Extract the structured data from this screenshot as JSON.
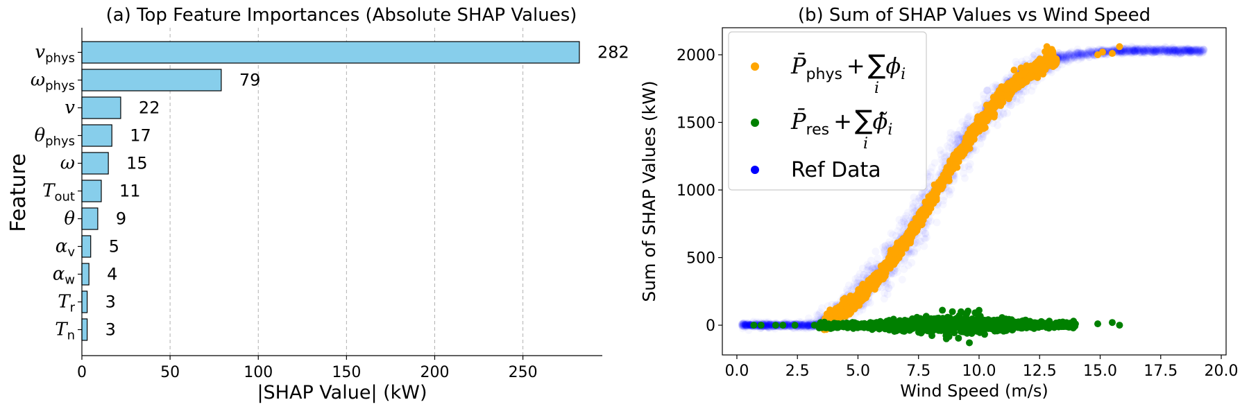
{
  "colors": {
    "bar_fill": "#87ceeb",
    "bar_edge": "#000000",
    "phys": "#ffa500",
    "res": "#008000",
    "ref": "#0000ff",
    "grid": "#b0b0b0"
  },
  "chart_data": [
    {
      "type": "bar",
      "orientation": "horizontal",
      "title": "(a) Top Feature Importances (Absolute SHAP Values)",
      "xlabel": "|SHAP Value| (kW)",
      "ylabel": "Feature",
      "xlim": [
        0,
        295
      ],
      "xticks": [
        0,
        50,
        100,
        150,
        200,
        250
      ],
      "xtick_labels": [
        "0",
        "50",
        "100",
        "150",
        "200",
        "250"
      ],
      "grid": "x-dashed",
      "categories": [
        {
          "main": "v",
          "sub": "phys"
        },
        {
          "main": "ω",
          "sub": "phys"
        },
        {
          "main": "v",
          "sub": ""
        },
        {
          "main": "θ",
          "sub": "phys"
        },
        {
          "main": "ω",
          "sub": ""
        },
        {
          "main": "T",
          "sub": "out"
        },
        {
          "main": "θ",
          "sub": ""
        },
        {
          "main": "α",
          "sub": "v"
        },
        {
          "main": "α",
          "sub": "w"
        },
        {
          "main": "T",
          "sub": "r"
        },
        {
          "main": "T",
          "sub": "n"
        }
      ],
      "values": [
        282,
        79,
        22,
        17,
        15,
        11,
        9,
        5,
        4,
        3,
        3
      ],
      "value_labels": [
        "282",
        "79",
        "22",
        "17",
        "15",
        "11",
        "9",
        "5",
        "4",
        "3",
        "3"
      ]
    },
    {
      "type": "scatter",
      "title": "(b) Sum of SHAP Values vs Wind Speed",
      "xlabel": "Wind Speed (m/s)",
      "ylabel": "Sum of SHAP Values (kW)",
      "xlim": [
        -0.6,
        20.2
      ],
      "ylim": [
        -220,
        2200
      ],
      "xticks": [
        0,
        2.5,
        5,
        7.5,
        10,
        12.5,
        15,
        17.5,
        20
      ],
      "xtick_labels": [
        "0.0",
        "2.5",
        "5.0",
        "7.5",
        "10.0",
        "12.5",
        "15.0",
        "17.5",
        "20.0"
      ],
      "yticks": [
        0,
        500,
        1000,
        1500,
        2000
      ],
      "ytick_labels": [
        "0",
        "500",
        "1000",
        "1500",
        "2000"
      ],
      "legend_position": "upper-left",
      "legend": [
        {
          "key": "phys",
          "main": "P̄",
          "sub": "phys",
          "rest": "+",
          "sum": "∑",
          "phi": "ϕ",
          "idx": "i",
          "sumidx": "i"
        },
        {
          "key": "res",
          "main": "P̄",
          "sub": "res",
          "rest": "+",
          "sum": "∑",
          "phi": "ϕ̃",
          "idx": "i",
          "sumidx": "i"
        },
        {
          "key": "ref",
          "label": "Ref Data"
        }
      ],
      "series": [
        {
          "key": "ref",
          "curve": {
            "description_points_x": [
              0.2,
              3.3,
              4,
              5,
              6,
              7,
              8,
              9,
              10,
              11,
              12,
              13,
              14,
              15,
              16,
              17,
              18,
              19.3
            ],
            "y": [
              0,
              0,
              60,
              200,
              400,
              640,
              930,
              1230,
              1500,
              1720,
              1870,
              1960,
              2000,
              2020,
              2030,
              2030,
              2030,
              2030
            ]
          },
          "x_range": [
            0.2,
            19.3
          ]
        },
        {
          "key": "phys",
          "x_range": [
            3.6,
            15.8
          ],
          "extra_points": [
            [
              12.8,
              2060
            ],
            [
              13.0,
              2040
            ],
            [
              14.9,
              2000
            ],
            [
              15.1,
              2020
            ],
            [
              15.5,
              2010
            ],
            [
              15.8,
              2060
            ]
          ]
        },
        {
          "key": "res",
          "x_range": [
            0.7,
            15.9
          ],
          "outliers": [
            [
              0.7,
              0
            ],
            [
              1.0,
              0
            ],
            [
              1.6,
              0
            ],
            [
              1.9,
              0
            ],
            [
              2.4,
              0
            ],
            [
              3.2,
              0
            ],
            [
              9.6,
              -130
            ],
            [
              8.9,
              100
            ],
            [
              10.0,
              110
            ],
            [
              12.9,
              30
            ],
            [
              13.9,
              30
            ],
            [
              14.9,
              10
            ],
            [
              15.5,
              20
            ],
            [
              15.8,
              0
            ]
          ]
        }
      ]
    }
  ]
}
